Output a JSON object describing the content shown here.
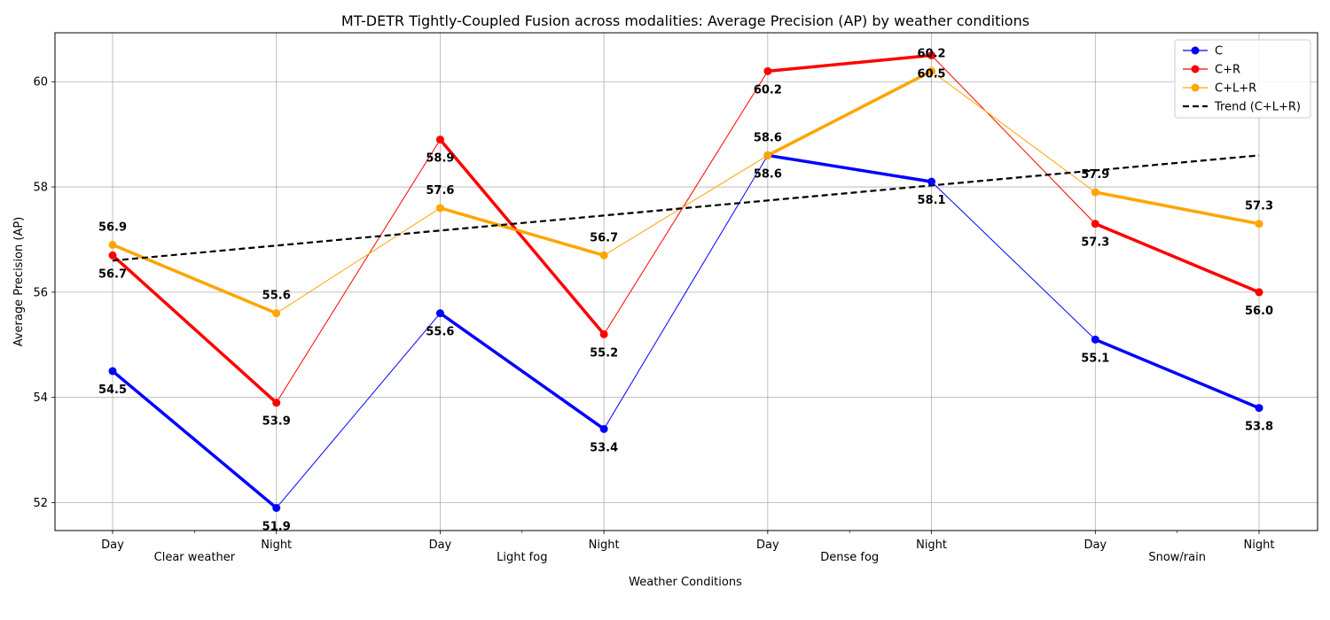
{
  "chart_data": {
    "type": "line",
    "title": "MT-DETR Tightly-Coupled Fusion across modalities: Average Precision (AP) by weather conditions",
    "xlabel": "Weather Conditions",
    "ylabel": "Average Precision (AP)",
    "ylim": [
      51.47,
      60.93
    ],
    "yticks": [
      52,
      54,
      56,
      58,
      60
    ],
    "grid": true,
    "legend_position": "top-right",
    "categories": [
      "Day",
      "Night",
      "Day",
      "Night",
      "Day",
      "Night",
      "Day",
      "Night"
    ],
    "groups": [
      {
        "label": "Clear weather",
        "span": [
          0,
          1
        ]
      },
      {
        "label": "Light fog",
        "span": [
          2,
          3
        ]
      },
      {
        "label": "Dense fog",
        "span": [
          4,
          5
        ]
      },
      {
        "label": "Snow/rain",
        "span": [
          6,
          7
        ]
      }
    ],
    "series": [
      {
        "name": "C",
        "color": "#0000ff",
        "values": [
          54.5,
          51.9,
          55.6,
          53.4,
          58.6,
          58.1,
          55.1,
          53.8
        ],
        "label_pos": [
          "below",
          "below",
          "below",
          "below",
          "below",
          "below",
          "below",
          "below"
        ]
      },
      {
        "name": "C+R",
        "color": "#ff0000",
        "values": [
          56.7,
          53.9,
          58.9,
          55.2,
          60.2,
          60.5,
          57.3,
          56.0
        ],
        "label_pos": [
          "below",
          "below",
          "below",
          "below",
          "below",
          "below",
          "below",
          "below"
        ]
      },
      {
        "name": "C+L+R",
        "color": "#ffa500",
        "values": [
          56.9,
          55.6,
          57.6,
          56.7,
          58.6,
          60.2,
          57.9,
          57.3
        ],
        "label_pos": [
          "above",
          "above",
          "above",
          "above",
          "above",
          "above",
          "above",
          "above"
        ]
      }
    ],
    "trend": {
      "name": "Trend (C+L+R)",
      "color": "#000000",
      "style": "dashed",
      "start": 56.6,
      "end": 58.6
    }
  }
}
